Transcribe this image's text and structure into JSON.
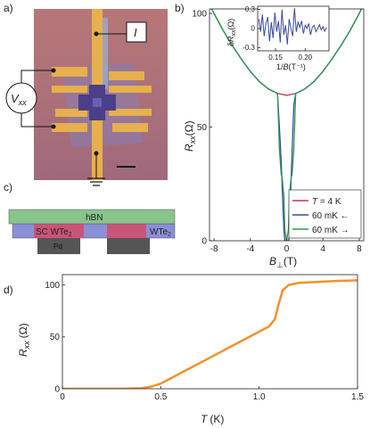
{
  "panels": {
    "a": "a)",
    "b": "b)",
    "c": "c)",
    "d": "d)"
  },
  "panel_a": {
    "current_label": "I",
    "voltage_label_main": "V",
    "voltage_label_sub": "xx"
  },
  "panel_c": {
    "hbn": "hBN",
    "sc_main": "SC WTe",
    "sc_sub": "2",
    "wte_main": "WTe",
    "wte_sub": "2",
    "pd": "Pd",
    "colors": {
      "hbn": "#88c48c",
      "wte2": "#8b8fd6",
      "sc": "#c9547a",
      "pd": "#555555"
    }
  },
  "chart_data": [
    {
      "id": "b",
      "type": "line",
      "xlabel_main": "B",
      "xlabel_sub": "⊥",
      "xlabel_unit": "(T)",
      "ylabel_main": "R",
      "ylabel_sub": "xx",
      "ylabel_unit": "(Ω)",
      "xlim": [
        -8.5,
        8.5
      ],
      "ylim": [
        0,
        102
      ],
      "xticks": [
        -8,
        -4,
        0,
        4,
        8
      ],
      "yticks": [
        0,
        50,
        100
      ],
      "legend_position": "bottom-right",
      "series": [
        {
          "name_main": "T",
          "name_rest": " = 4 K",
          "color": "#c0365a",
          "x": [
            -8.5,
            -8,
            -7,
            -6,
            -5,
            -4,
            -3,
            -2,
            -1,
            0,
            1,
            2,
            3,
            4,
            5,
            6,
            7,
            8,
            8.5
          ],
          "y": [
            104,
            100,
            92.5,
            86,
            80,
            74.5,
            70,
            66.8,
            64.8,
            64,
            64.8,
            66.8,
            70,
            74.5,
            80,
            86,
            92.5,
            100,
            104
          ]
        },
        {
          "name_main": "60 mK ←",
          "name_rest": "",
          "color": "#3a4a9a",
          "x": [
            -8.5,
            -8,
            -7,
            -6,
            -5,
            -4,
            -3,
            -2,
            -1.5,
            -1.2,
            -1,
            -0.8,
            -0.6,
            -0.4,
            -0.3,
            -0.2,
            0,
            0.2,
            0.3,
            0.5,
            0.8,
            1,
            1.2,
            1.5,
            2,
            3,
            4,
            5,
            6,
            7,
            8,
            8.5
          ],
          "y": [
            104,
            100,
            92.5,
            86,
            80,
            74.5,
            70,
            66.8,
            65.8,
            65.2,
            64.5,
            50,
            35,
            15,
            5,
            0,
            0,
            0,
            2,
            28,
            60,
            64.8,
            65.2,
            65.8,
            66.8,
            70,
            74.5,
            80,
            86,
            92.5,
            100,
            104
          ]
        },
        {
          "name_main": "60 mK →",
          "name_rest": "",
          "color": "#2e9c4e",
          "x": [
            -8.5,
            -8,
            -7,
            -6,
            -5,
            -4,
            -3,
            -2,
            -1.5,
            -1.2,
            -1,
            -0.8,
            -0.6,
            -0.5,
            -0.3,
            -0.2,
            0,
            0.2,
            0.3,
            0.5,
            0.6,
            0.8,
            1,
            1.2,
            1.5,
            2,
            3,
            4,
            5,
            6,
            7,
            8,
            8.5
          ],
          "y": [
            104,
            100,
            92.5,
            86,
            80,
            74.5,
            70,
            66.8,
            65.8,
            65.2,
            64.8,
            40,
            29,
            28,
            20,
            5,
            0,
            5,
            20,
            28,
            29,
            40,
            64.8,
            65.2,
            65.8,
            66.8,
            70,
            74.5,
            80,
            86,
            92.5,
            100,
            104
          ]
        }
      ]
    },
    {
      "id": "b-inset",
      "type": "line",
      "xlabel_pre": "1/",
      "xlabel_main": "B",
      "xlabel_unit": "(T⁻¹)",
      "ylabel_pre": "δ",
      "ylabel_main": "R",
      "ylabel_sub": "xx",
      "ylabel_unit": "(Ω)",
      "xlim": [
        0.12,
        0.24
      ],
      "ylim": [
        -0.35,
        0.35
      ],
      "xticks": [
        0.15,
        0.2
      ],
      "yticks": [
        -0.3,
        0,
        0.3
      ],
      "series": [
        {
          "color": "#3a4a9a",
          "x": [
            0.122,
            0.125,
            0.128,
            0.131,
            0.134,
            0.137,
            0.14,
            0.143,
            0.146,
            0.149,
            0.152,
            0.155,
            0.158,
            0.161,
            0.164,
            0.167,
            0.17,
            0.173,
            0.176,
            0.179,
            0.182,
            0.185,
            0.188,
            0.191,
            0.194,
            0.197,
            0.2,
            0.203,
            0.206,
            0.209,
            0.212,
            0.215,
            0.218,
            0.221,
            0.224,
            0.227,
            0.23,
            0.233,
            0.236
          ],
          "y": [
            0.15,
            -0.05,
            0.22,
            -0.12,
            0.08,
            0.18,
            -0.2,
            0.1,
            -0.15,
            0.25,
            -0.05,
            0.12,
            -0.22,
            0.3,
            -0.1,
            0.05,
            -0.25,
            0.15,
            0.0,
            -0.12,
            0.32,
            -0.05,
            0.1,
            0.02,
            0.12,
            -0.08,
            0.05,
            0.0,
            0.08,
            -0.1,
            0.02,
            0.05,
            -0.05,
            0.0,
            0.06,
            -0.02,
            0.03,
            -0.04,
            0.02
          ]
        }
      ]
    },
    {
      "id": "d",
      "type": "line",
      "xlabel_main": "T",
      "xlabel_unit": "(K)",
      "ylabel_main": "R",
      "ylabel_sub": "xx",
      "ylabel_unit": "(Ω)",
      "xlim": [
        0,
        1.5
      ],
      "ylim": [
        0,
        110
      ],
      "xticks": [
        0,
        0.5,
        1.0,
        1.5
      ],
      "yticks": [
        0,
        50,
        100
      ],
      "series": [
        {
          "color": "#f0922e",
          "x": [
            0.0,
            0.3,
            0.4,
            0.45,
            0.5,
            0.55,
            0.6,
            0.7,
            0.8,
            0.9,
            1.0,
            1.05,
            1.08,
            1.1,
            1.12,
            1.15,
            1.2,
            1.3,
            1.4,
            1.5
          ],
          "y": [
            0,
            0,
            0.5,
            2,
            5,
            10,
            15,
            25,
            35,
            45,
            55,
            60,
            67,
            82,
            95,
            100,
            102,
            103,
            104,
            104.5
          ]
        }
      ]
    }
  ]
}
